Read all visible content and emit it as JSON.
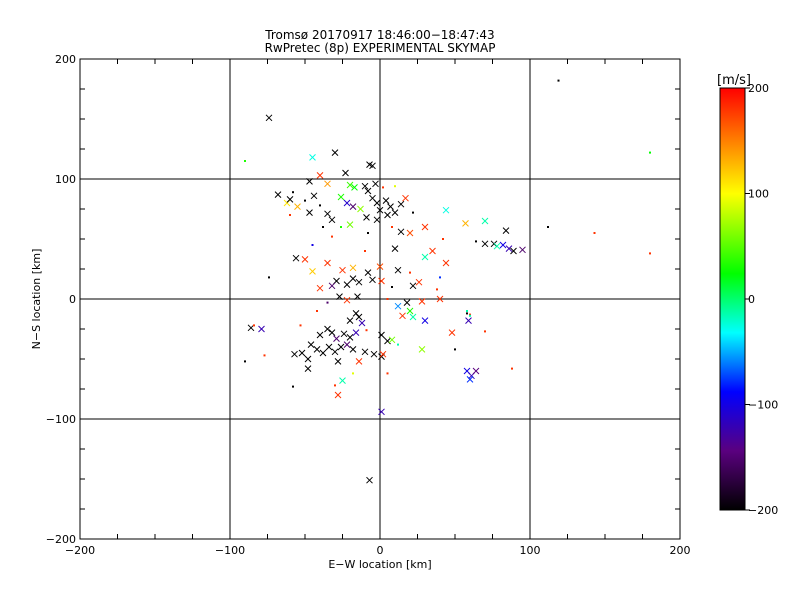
{
  "chart_data": {
    "type": "scatter",
    "title": "Tromsø 20170917 18:46:00−18:47:43",
    "subtitle": "RwPretec (8p) EXPERIMENTAL SKYMAP",
    "xlabel": "E−W location [km]",
    "ylabel": "N−S location [km]",
    "xlim": [
      -200,
      200
    ],
    "ylim": [
      -200,
      200
    ],
    "xticks": [
      -200,
      -100,
      0,
      100,
      200
    ],
    "yticks": [
      -200,
      -100,
      0,
      100,
      200
    ],
    "xtick_labels": [
      "−200",
      "−100",
      "0",
      "100",
      "200"
    ],
    "ytick_labels": [
      "−200",
      "−100",
      "0",
      "100",
      "200"
    ],
    "grid": true,
    "colorbar": {
      "label": "[m/s]",
      "range": [
        -200,
        200
      ],
      "ticks": [
        -200,
        -100,
        0,
        100,
        200
      ],
      "tick_labels": [
        "−200",
        "−100",
        "0",
        "100",
        "200"
      ],
      "colors": [
        "#000000",
        "#5a007f",
        "#0000ff",
        "#00ffff",
        "#00ff00",
        "#ffff00",
        "#ff0000"
      ]
    },
    "markers": {
      "cross_label": "x",
      "dot_label": "dot"
    },
    "points": [
      {
        "x": -74,
        "y": 151,
        "v": -200,
        "m": "x"
      },
      {
        "x": 119,
        "y": 182,
        "v": -200,
        "m": "d"
      },
      {
        "x": -7,
        "y": -151,
        "v": -200,
        "m": "x"
      },
      {
        "x": 1,
        "y": -94,
        "v": -120,
        "m": "x"
      },
      {
        "x": -30,
        "y": 122,
        "v": -200,
        "m": "x"
      },
      {
        "x": -7,
        "y": 112,
        "v": -200,
        "m": "x"
      },
      {
        "x": -5,
        "y": 111,
        "v": -200,
        "m": "x"
      },
      {
        "x": -23,
        "y": 105,
        "v": -200,
        "m": "x"
      },
      {
        "x": -45,
        "y": 118,
        "v": -30,
        "m": "x"
      },
      {
        "x": -90,
        "y": 115,
        "v": 20,
        "m": "d"
      },
      {
        "x": -40,
        "y": 103,
        "v": 180,
        "m": "x"
      },
      {
        "x": -47,
        "y": 98,
        "v": -200,
        "m": "x"
      },
      {
        "x": -35,
        "y": 96,
        "v": 140,
        "m": "x"
      },
      {
        "x": -20,
        "y": 95,
        "v": 30,
        "m": "x"
      },
      {
        "x": -17,
        "y": 93,
        "v": 10,
        "m": "x"
      },
      {
        "x": -10,
        "y": 94,
        "v": -200,
        "m": "x"
      },
      {
        "x": -3,
        "y": 96,
        "v": -200,
        "m": "x"
      },
      {
        "x": 2,
        "y": 93,
        "v": 180,
        "m": "d"
      },
      {
        "x": 10,
        "y": 94,
        "v": 90,
        "m": "d"
      },
      {
        "x": -58,
        "y": 89,
        "v": -200,
        "m": "d"
      },
      {
        "x": -68,
        "y": 87,
        "v": -200,
        "m": "x"
      },
      {
        "x": -62,
        "y": 80,
        "v": 110,
        "m": "x"
      },
      {
        "x": -60,
        "y": 83,
        "v": -200,
        "m": "x"
      },
      {
        "x": -55,
        "y": 77,
        "v": 130,
        "m": "x"
      },
      {
        "x": -50,
        "y": 82,
        "v": -200,
        "m": "d"
      },
      {
        "x": -44,
        "y": 86,
        "v": -200,
        "m": "x"
      },
      {
        "x": -40,
        "y": 78,
        "v": -200,
        "m": "d"
      },
      {
        "x": -35,
        "y": 71,
        "v": -200,
        "m": "x"
      },
      {
        "x": -32,
        "y": 66,
        "v": -200,
        "m": "x"
      },
      {
        "x": -47,
        "y": 72,
        "v": -200,
        "m": "x"
      },
      {
        "x": -26,
        "y": 85,
        "v": 20,
        "m": "x"
      },
      {
        "x": -22,
        "y": 80,
        "v": -110,
        "m": "x"
      },
      {
        "x": -18,
        "y": 77,
        "v": -150,
        "m": "x"
      },
      {
        "x": -13,
        "y": 75,
        "v": 60,
        "m": "x"
      },
      {
        "x": -8,
        "y": 90,
        "v": -200,
        "m": "x"
      },
      {
        "x": -5,
        "y": 84,
        "v": -200,
        "m": "x"
      },
      {
        "x": -2,
        "y": 80,
        "v": -200,
        "m": "x"
      },
      {
        "x": 0,
        "y": 74,
        "v": -200,
        "m": "x"
      },
      {
        "x": 4,
        "y": 82,
        "v": -200,
        "m": "x"
      },
      {
        "x": 7,
        "y": 77,
        "v": -200,
        "m": "x"
      },
      {
        "x": 10,
        "y": 72,
        "v": -200,
        "m": "x"
      },
      {
        "x": 14,
        "y": 79,
        "v": -200,
        "m": "x"
      },
      {
        "x": 17,
        "y": 84,
        "v": 180,
        "m": "x"
      },
      {
        "x": -9,
        "y": 68,
        "v": -200,
        "m": "x"
      },
      {
        "x": -2,
        "y": 66,
        "v": -200,
        "m": "x"
      },
      {
        "x": 5,
        "y": 70,
        "v": -200,
        "m": "x"
      },
      {
        "x": -20,
        "y": 62,
        "v": 50,
        "m": "x"
      },
      {
        "x": -26,
        "y": 60,
        "v": 20,
        "m": "d"
      },
      {
        "x": 30,
        "y": 60,
        "v": 180,
        "m": "x"
      },
      {
        "x": 44,
        "y": 74,
        "v": -30,
        "m": "x"
      },
      {
        "x": 57,
        "y": 63,
        "v": 130,
        "m": "x"
      },
      {
        "x": 70,
        "y": 65,
        "v": -20,
        "m": "x"
      },
      {
        "x": 84,
        "y": 57,
        "v": -200,
        "m": "x"
      },
      {
        "x": 112,
        "y": 60,
        "v": -200,
        "m": "d"
      },
      {
        "x": 143,
        "y": 55,
        "v": 180,
        "m": "d"
      },
      {
        "x": 180,
        "y": 122,
        "v": 10,
        "m": "d"
      },
      {
        "x": 180,
        "y": 38,
        "v": 180,
        "m": "d"
      },
      {
        "x": 20,
        "y": 55,
        "v": 170,
        "m": "x"
      },
      {
        "x": 14,
        "y": 56,
        "v": -200,
        "m": "x"
      },
      {
        "x": 42,
        "y": 50,
        "v": 180,
        "m": "d"
      },
      {
        "x": 70,
        "y": 46,
        "v": -200,
        "m": "x"
      },
      {
        "x": 76,
        "y": 46,
        "v": -200,
        "m": "x"
      },
      {
        "x": 82,
        "y": 45,
        "v": -100,
        "m": "x"
      },
      {
        "x": 86,
        "y": 42,
        "v": -120,
        "m": "x"
      },
      {
        "x": 89,
        "y": 40,
        "v": -200,
        "m": "x"
      },
      {
        "x": 95,
        "y": 41,
        "v": -150,
        "m": "x"
      },
      {
        "x": 78,
        "y": 44,
        "v": -20,
        "m": "x"
      },
      {
        "x": 64,
        "y": 48,
        "v": -200,
        "m": "d"
      },
      {
        "x": 10,
        "y": 42,
        "v": -200,
        "m": "x"
      },
      {
        "x": 35,
        "y": 40,
        "v": 180,
        "m": "x"
      },
      {
        "x": 44,
        "y": 30,
        "v": 180,
        "m": "x"
      },
      {
        "x": -56,
        "y": 34,
        "v": -200,
        "m": "x"
      },
      {
        "x": -50,
        "y": 33,
        "v": 180,
        "m": "x"
      },
      {
        "x": -35,
        "y": 30,
        "v": 180,
        "m": "x"
      },
      {
        "x": -74,
        "y": 18,
        "v": -200,
        "m": "d"
      },
      {
        "x": -45,
        "y": 23,
        "v": 120,
        "m": "x"
      },
      {
        "x": -25,
        "y": 24,
        "v": 180,
        "m": "x"
      },
      {
        "x": -18,
        "y": 26,
        "v": 130,
        "m": "x"
      },
      {
        "x": -8,
        "y": 22,
        "v": -200,
        "m": "x"
      },
      {
        "x": 0,
        "y": 27,
        "v": 170,
        "m": "x"
      },
      {
        "x": 12,
        "y": 24,
        "v": -200,
        "m": "x"
      },
      {
        "x": 20,
        "y": 22,
        "v": 180,
        "m": "d"
      },
      {
        "x": -29,
        "y": 15,
        "v": -200,
        "m": "x"
      },
      {
        "x": -22,
        "y": 12,
        "v": -200,
        "m": "x"
      },
      {
        "x": -18,
        "y": 17,
        "v": -200,
        "m": "x"
      },
      {
        "x": -14,
        "y": 14,
        "v": -200,
        "m": "x"
      },
      {
        "x": -5,
        "y": 16,
        "v": -200,
        "m": "x"
      },
      {
        "x": 1,
        "y": 15,
        "v": 180,
        "m": "x"
      },
      {
        "x": -40,
        "y": 9,
        "v": 180,
        "m": "x"
      },
      {
        "x": -32,
        "y": 11,
        "v": -150,
        "m": "x"
      },
      {
        "x": 8,
        "y": 10,
        "v": -200,
        "m": "d"
      },
      {
        "x": 22,
        "y": 11,
        "v": -200,
        "m": "x"
      },
      {
        "x": 26,
        "y": 14,
        "v": 180,
        "m": "x"
      },
      {
        "x": 38,
        "y": 8,
        "v": 180,
        "m": "d"
      },
      {
        "x": -27,
        "y": 2,
        "v": -200,
        "m": "x"
      },
      {
        "x": -22,
        "y": -1,
        "v": 180,
        "m": "x"
      },
      {
        "x": -15,
        "y": 2,
        "v": -200,
        "m": "x"
      },
      {
        "x": 5,
        "y": 0,
        "v": 180,
        "m": "d"
      },
      {
        "x": 18,
        "y": -3,
        "v": -200,
        "m": "x"
      },
      {
        "x": 28,
        "y": -2,
        "v": 180,
        "m": "x"
      },
      {
        "x": 40,
        "y": 0,
        "v": 180,
        "m": "x"
      },
      {
        "x": 12,
        "y": -6,
        "v": -60,
        "m": "x"
      },
      {
        "x": 20,
        "y": -10,
        "v": 20,
        "m": "x"
      },
      {
        "x": -35,
        "y": -3,
        "v": -150,
        "m": "d"
      },
      {
        "x": -42,
        "y": -10,
        "v": 180,
        "m": "d"
      },
      {
        "x": -16,
        "y": -12,
        "v": -200,
        "m": "x"
      },
      {
        "x": -14,
        "y": -15,
        "v": -200,
        "m": "x"
      },
      {
        "x": -20,
        "y": -18,
        "v": -200,
        "m": "x"
      },
      {
        "x": -12,
        "y": -20,
        "v": -120,
        "m": "x"
      },
      {
        "x": 22,
        "y": -15,
        "v": -20,
        "m": "x"
      },
      {
        "x": 30,
        "y": -18,
        "v": -100,
        "m": "x"
      },
      {
        "x": 15,
        "y": -14,
        "v": 180,
        "m": "x"
      },
      {
        "x": 58,
        "y": -12,
        "v": -200,
        "m": "d"
      },
      {
        "x": 60,
        "y": -13,
        "v": 180,
        "m": "d"
      },
      {
        "x": 60,
        "y": -14,
        "v": -20,
        "m": "d"
      },
      {
        "x": 58,
        "y": -10,
        "v": -20,
        "m": "d"
      },
      {
        "x": 59,
        "y": -18,
        "v": -120,
        "m": "x"
      },
      {
        "x": 70,
        "y": -27,
        "v": 180,
        "m": "d"
      },
      {
        "x": -86,
        "y": -24,
        "v": -200,
        "m": "x"
      },
      {
        "x": -84,
        "y": -22,
        "v": 180,
        "m": "d"
      },
      {
        "x": -79,
        "y": -25,
        "v": -120,
        "m": "x"
      },
      {
        "x": -53,
        "y": -22,
        "v": 180,
        "m": "d"
      },
      {
        "x": -35,
        "y": -25,
        "v": -200,
        "m": "x"
      },
      {
        "x": -32,
        "y": -28,
        "v": -200,
        "m": "x"
      },
      {
        "x": -40,
        "y": -30,
        "v": -200,
        "m": "x"
      },
      {
        "x": -29,
        "y": -33,
        "v": -150,
        "m": "x"
      },
      {
        "x": -24,
        "y": -29,
        "v": -200,
        "m": "x"
      },
      {
        "x": -20,
        "y": -32,
        "v": -200,
        "m": "x"
      },
      {
        "x": -16,
        "y": -28,
        "v": -120,
        "m": "x"
      },
      {
        "x": -9,
        "y": -26,
        "v": 180,
        "m": "d"
      },
      {
        "x": 1,
        "y": -30,
        "v": -200,
        "m": "x"
      },
      {
        "x": 5,
        "y": -35,
        "v": -200,
        "m": "x"
      },
      {
        "x": 8,
        "y": -34,
        "v": 50,
        "m": "x"
      },
      {
        "x": 12,
        "y": -38,
        "v": -20,
        "m": "d"
      },
      {
        "x": 28,
        "y": -42,
        "v": 60,
        "m": "x"
      },
      {
        "x": 50,
        "y": -42,
        "v": -200,
        "m": "d"
      },
      {
        "x": -46,
        "y": -38,
        "v": -200,
        "m": "x"
      },
      {
        "x": -42,
        "y": -42,
        "v": -200,
        "m": "x"
      },
      {
        "x": -38,
        "y": -45,
        "v": -200,
        "m": "x"
      },
      {
        "x": -34,
        "y": -40,
        "v": -200,
        "m": "x"
      },
      {
        "x": -30,
        "y": -44,
        "v": -200,
        "m": "x"
      },
      {
        "x": -26,
        "y": -40,
        "v": -200,
        "m": "x"
      },
      {
        "x": -22,
        "y": -38,
        "v": -150,
        "m": "x"
      },
      {
        "x": -18,
        "y": -42,
        "v": -200,
        "m": "x"
      },
      {
        "x": -10,
        "y": -44,
        "v": -200,
        "m": "x"
      },
      {
        "x": -4,
        "y": -46,
        "v": -200,
        "m": "x"
      },
      {
        "x": 1,
        "y": -48,
        "v": -200,
        "m": "x"
      },
      {
        "x": 2,
        "y": -46,
        "v": 180,
        "m": "x"
      },
      {
        "x": -57,
        "y": -46,
        "v": -200,
        "m": "x"
      },
      {
        "x": -52,
        "y": -45,
        "v": -200,
        "m": "x"
      },
      {
        "x": -48,
        "y": -50,
        "v": -200,
        "m": "x"
      },
      {
        "x": -28,
        "y": -52,
        "v": -200,
        "m": "x"
      },
      {
        "x": -14,
        "y": -52,
        "v": 180,
        "m": "x"
      },
      {
        "x": -90,
        "y": -52,
        "v": -200,
        "m": "d"
      },
      {
        "x": -77,
        "y": -47,
        "v": 180,
        "m": "d"
      },
      {
        "x": -48,
        "y": -58,
        "v": -200,
        "m": "x"
      },
      {
        "x": -18,
        "y": -62,
        "v": 90,
        "m": "d"
      },
      {
        "x": -25,
        "y": -68,
        "v": -20,
        "m": "x"
      },
      {
        "x": -30,
        "y": -72,
        "v": 180,
        "m": "d"
      },
      {
        "x": -28,
        "y": -80,
        "v": 180,
        "m": "x"
      },
      {
        "x": -58,
        "y": -73,
        "v": -200,
        "m": "d"
      },
      {
        "x": 58,
        "y": -60,
        "v": -100,
        "m": "x"
      },
      {
        "x": 61,
        "y": -64,
        "v": -120,
        "m": "x"
      },
      {
        "x": 64,
        "y": -60,
        "v": -140,
        "m": "x"
      },
      {
        "x": 60,
        "y": -67,
        "v": -80,
        "m": "x"
      },
      {
        "x": 88,
        "y": -58,
        "v": 180,
        "m": "d"
      },
      {
        "x": 5,
        "y": -62,
        "v": 180,
        "m": "d"
      },
      {
        "x": -8,
        "y": 55,
        "v": -200,
        "m": "d"
      },
      {
        "x": -32,
        "y": 52,
        "v": 180,
        "m": "d"
      },
      {
        "x": 22,
        "y": 72,
        "v": -200,
        "m": "d"
      },
      {
        "x": 30,
        "y": 35,
        "v": -20,
        "m": "x"
      },
      {
        "x": 48,
        "y": -28,
        "v": 180,
        "m": "x"
      },
      {
        "x": -60,
        "y": 70,
        "v": 180,
        "m": "d"
      },
      {
        "x": -38,
        "y": 60,
        "v": -200,
        "m": "d"
      },
      {
        "x": 8,
        "y": 60,
        "v": 180,
        "m": "d"
      },
      {
        "x": 40,
        "y": 18,
        "v": -80,
        "m": "d"
      },
      {
        "x": -10,
        "y": 40,
        "v": 180,
        "m": "d"
      },
      {
        "x": -45,
        "y": 45,
        "v": -100,
        "m": "d"
      }
    ]
  }
}
